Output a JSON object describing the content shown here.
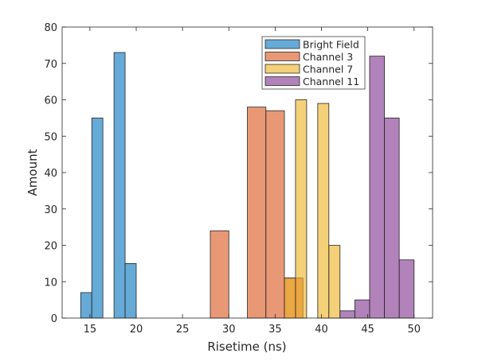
{
  "chart_data": {
    "type": "bar",
    "subtype": "histogram",
    "title": "",
    "xlabel": "Risetime (ns)",
    "ylabel": "Amount",
    "xlim": [
      12,
      52
    ],
    "ylim": [
      0,
      80
    ],
    "xticks": [
      15,
      20,
      25,
      30,
      35,
      40,
      45,
      50
    ],
    "yticks": [
      0,
      10,
      20,
      30,
      40,
      50,
      60,
      70,
      80
    ],
    "grid": false,
    "legend_position": "top-right",
    "series": [
      {
        "name": "Bright Field",
        "color": "#0072BD",
        "bin_edges": [
          14,
          15.2,
          16.4,
          17.6,
          18.8,
          20
        ],
        "values": [
          7,
          55,
          0,
          73,
          15
        ]
      },
      {
        "name": "Channel 3",
        "color": "#D95319",
        "bin_edges": [
          28,
          30,
          32,
          34,
          36,
          38
        ],
        "values": [
          24,
          0,
          58,
          57,
          11
        ]
      },
      {
        "name": "Channel 7",
        "color": "#EDB120",
        "bin_edges": [
          36,
          37.2,
          38.4,
          39.6,
          40.8,
          42
        ],
        "values": [
          11,
          60,
          0,
          59,
          20
        ]
      },
      {
        "name": "Channel 11",
        "color": "#7E2F8E",
        "bin_edges": [
          42,
          43.6,
          45.2,
          46.8,
          48.4,
          50
        ],
        "values": [
          2,
          5,
          72,
          55,
          16
        ]
      }
    ]
  }
}
